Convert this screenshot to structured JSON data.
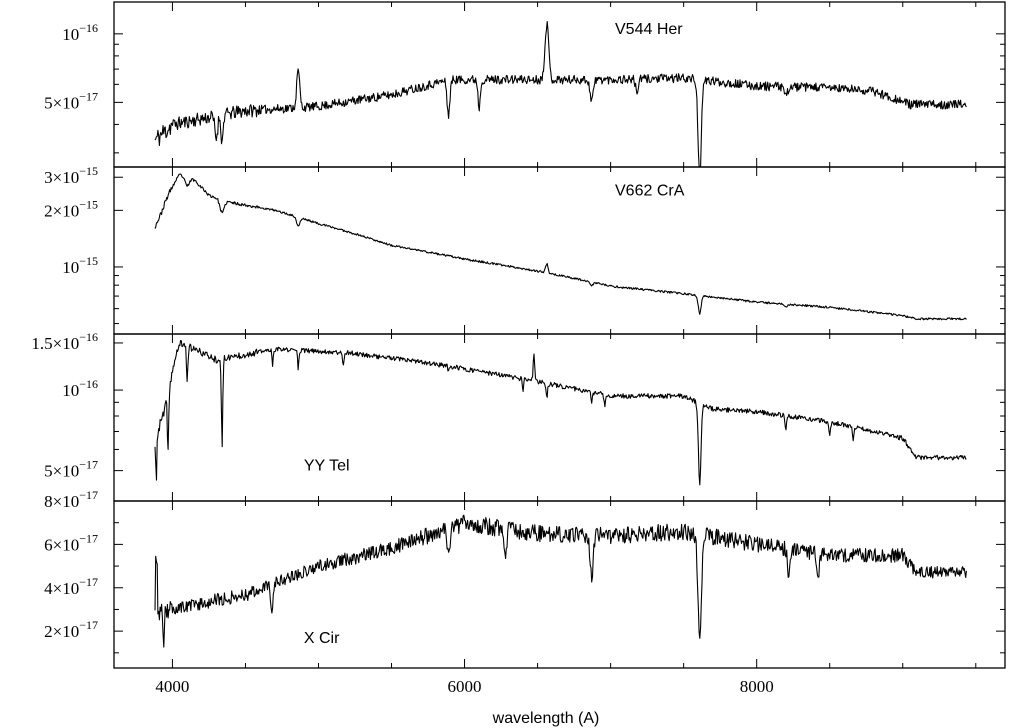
{
  "chart_data": {
    "type": "line",
    "xlabel": "wavelength (A)",
    "xlim": [
      3600,
      9700
    ],
    "x_ticks": [
      {
        "value": 4000,
        "label": "4000"
      },
      {
        "value": 6000,
        "label": "6000"
      },
      {
        "value": 8000,
        "label": "8000"
      }
    ],
    "x_minor_step": 500,
    "grid": false,
    "panels": [
      {
        "id": "v544-her",
        "star_label": "V544 Her",
        "star_label_anchor": [
          7030,
          1e-16,
          "upper-right"
        ],
        "y_scale": "log",
        "ylim": [
          2.6e-17,
          1.38e-16
        ],
        "y_ticks": [
          {
            "value": 1e-16,
            "mantissa": "",
            "exponent": "−16"
          },
          {
            "value": 5e-17,
            "mantissa": "5×",
            "exponent": "−17"
          }
        ],
        "y_minor": [
          3e-17,
          4e-17,
          6e-17,
          7e-17,
          8e-17,
          9e-17
        ],
        "seed": 11,
        "noise": 0.045,
        "continuum": [
          [
            3860,
            3.3e-17
          ],
          [
            4000,
            4e-17
          ],
          [
            4500,
            4.6e-17
          ],
          [
            5000,
            4.8e-17
          ],
          [
            5500,
            5.4e-17
          ],
          [
            5900,
            6.3e-17
          ],
          [
            6200,
            6.3e-17
          ],
          [
            6600,
            6.3e-17
          ],
          [
            7000,
            6.3e-17
          ],
          [
            7500,
            6.4e-17
          ],
          [
            8000,
            5.9e-17
          ],
          [
            8500,
            5.8e-17
          ],
          [
            8800,
            5.6e-17
          ],
          [
            9050,
            4.9e-17
          ]
        ],
        "features": [
          {
            "w": 4340,
            "d": -0.25,
            "s": 7
          },
          {
            "w": 4861,
            "d": 0.45,
            "s": 10
          },
          {
            "w": 4300,
            "d": -0.2,
            "s": 10
          },
          {
            "w": 5890,
            "d": -0.3,
            "s": 10
          },
          {
            "w": 6100,
            "d": -0.25,
            "s": 8
          },
          {
            "w": 6563,
            "d": 0.75,
            "s": 12
          },
          {
            "w": 6870,
            "d": -0.18,
            "s": 12
          },
          {
            "w": 7180,
            "d": -0.12,
            "s": 10
          },
          {
            "w": 7610,
            "d": -0.7,
            "s": 12
          },
          {
            "w": 8200,
            "d": -0.1,
            "s": 10
          }
        ]
      },
      {
        "id": "v662-cra",
        "star_label": "V662 CrA",
        "star_label_anchor": [
          7030,
          2.4e-15,
          "upper-right"
        ],
        "y_scale": "log",
        "ylim": [
          4.4e-16,
          3.4e-15
        ],
        "y_ticks": [
          {
            "value": 3e-15,
            "mantissa": "3×",
            "exponent": "−15"
          },
          {
            "value": 2e-15,
            "mantissa": "2×",
            "exponent": "−15"
          },
          {
            "value": 1e-15,
            "mantissa": "",
            "exponent": "−15"
          }
        ],
        "y_minor": [
          5e-16,
          6e-16,
          7e-16,
          8e-16,
          9e-16
        ],
        "seed": 23,
        "noise": 0.012,
        "continuum": [
          [
            3860,
            1.5e-15
          ],
          [
            3920,
            1.9e-15
          ],
          [
            3980,
            2.5e-15
          ],
          [
            4050,
            3.1e-15
          ],
          [
            4150,
            2.9e-15
          ],
          [
            4250,
            2.4e-15
          ],
          [
            4400,
            2.2e-15
          ],
          [
            4700,
            2e-15
          ],
          [
            5000,
            1.7e-15
          ],
          [
            5500,
            1.3e-15
          ],
          [
            6000,
            1.1e-15
          ],
          [
            6500,
            9.5e-16
          ],
          [
            7000,
            7.9e-16
          ],
          [
            7500,
            7.2e-16
          ],
          [
            8000,
            6.5e-16
          ],
          [
            8500,
            6.1e-16
          ],
          [
            9000,
            5.5e-16
          ],
          [
            9090,
            5.3e-16
          ]
        ],
        "features": [
          {
            "w": 4100,
            "d": -0.1,
            "s": 15
          },
          {
            "w": 4340,
            "d": -0.15,
            "s": 15
          },
          {
            "w": 4861,
            "d": -0.1,
            "s": 12
          },
          {
            "w": 6563,
            "d": 0.12,
            "s": 8
          },
          {
            "w": 6870,
            "d": -0.05,
            "s": 8
          },
          {
            "w": 7610,
            "d": -0.2,
            "s": 10
          },
          {
            "w": 8200,
            "d": -0.03,
            "s": 10
          }
        ]
      },
      {
        "id": "yy-tel",
        "star_label": "YY Tel",
        "star_label_anchor": [
          4900,
          5e-17,
          "lower-left"
        ],
        "y_scale": "log",
        "ylim": [
          3.85e-17,
          1.62e-16
        ],
        "y_ticks": [
          {
            "value": 1.5e-16,
            "mantissa": "1.5×",
            "exponent": "−16"
          },
          {
            "value": 1e-16,
            "mantissa": "",
            "exponent": "−16"
          },
          {
            "value": 5e-17,
            "mantissa": "5×",
            "exponent": "−17"
          }
        ],
        "y_minor": [
          6e-17,
          7e-17,
          8e-17,
          9e-17
        ],
        "seed": 37,
        "noise": 0.02,
        "continuum": [
          [
            3860,
            5.7e-17
          ],
          [
            3950,
            8.5e-17
          ],
          [
            4050,
            1.5e-16
          ],
          [
            4300,
            1.3e-16
          ],
          [
            4700,
            1.42e-16
          ],
          [
            5200,
            1.38e-16
          ],
          [
            5800,
            1.25e-16
          ],
          [
            6200,
            1.15e-16
          ],
          [
            6600,
            1.05e-16
          ],
          [
            7000,
            9.5e-17
          ],
          [
            7500,
            9.5e-17
          ],
          [
            7700,
            8.5e-17
          ],
          [
            8000,
            8.3e-17
          ],
          [
            8500,
            7.6e-17
          ],
          [
            9000,
            6.6e-17
          ],
          [
            9090,
            5.6e-17
          ]
        ],
        "features": [
          {
            "w": 3889,
            "d": -0.3,
            "s": 4
          },
          {
            "w": 3970,
            "d": -0.4,
            "s": 5
          },
          {
            "w": 4101,
            "d": -0.25,
            "s": 5
          },
          {
            "w": 4340,
            "d": -0.55,
            "s": 5
          },
          {
            "w": 4686,
            "d": -0.15,
            "s": 4
          },
          {
            "w": 4861,
            "d": -0.15,
            "s": 4
          },
          {
            "w": 5170,
            "d": -0.12,
            "s": 4
          },
          {
            "w": 5890,
            "d": -0.05,
            "s": 4
          },
          {
            "w": 6400,
            "d": -0.1,
            "s": 4
          },
          {
            "w": 6475,
            "d": 0.25,
            "s": 5
          },
          {
            "w": 6563,
            "d": -0.12,
            "s": 5
          },
          {
            "w": 6870,
            "d": -0.1,
            "s": 5
          },
          {
            "w": 6960,
            "d": -0.08,
            "s": 5
          },
          {
            "w": 7610,
            "d": -0.5,
            "s": 10
          },
          {
            "w": 8200,
            "d": -0.1,
            "s": 6
          },
          {
            "w": 8500,
            "d": -0.1,
            "s": 5
          },
          {
            "w": 8660,
            "d": -0.1,
            "s": 5
          }
        ]
      },
      {
        "id": "x-cir",
        "star_label": "X Cir",
        "star_label_anchor": [
          4900,
          1.45e-17,
          "lower-left"
        ],
        "y_scale": "linear",
        "ylim": [
          3e-18,
          8e-17
        ],
        "y_ticks": [
          {
            "value": 8e-17,
            "mantissa": "8×",
            "exponent": "−17"
          },
          {
            "value": 6e-17,
            "mantissa": "6×",
            "exponent": "−17"
          },
          {
            "value": 4e-17,
            "mantissa": "4×",
            "exponent": "−17"
          },
          {
            "value": 2e-17,
            "mantissa": "2×",
            "exponent": "−17"
          }
        ],
        "y_minor": [
          1e-17,
          3e-17,
          5e-17,
          7e-17
        ],
        "seed": 53,
        "noise": 0.06,
        "continuum": [
          [
            3860,
            2.8e-17
          ],
          [
            4000,
            3e-17
          ],
          [
            4500,
            3.7e-17
          ],
          [
            5000,
            5e-17
          ],
          [
            5500,
            5.8e-17
          ],
          [
            6000,
            7e-17
          ],
          [
            6500,
            6.5e-17
          ],
          [
            7000,
            6.4e-17
          ],
          [
            7500,
            6.6e-17
          ],
          [
            8000,
            6e-17
          ],
          [
            8500,
            5.5e-17
          ],
          [
            9000,
            5.5e-17
          ],
          [
            9090,
            4.7e-17
          ]
        ],
        "features": [
          {
            "w": 3890,
            "d": 1.1,
            "s": 5
          },
          {
            "w": 3940,
            "d": -0.6,
            "s": 5
          },
          {
            "w": 4680,
            "d": -0.35,
            "s": 7
          },
          {
            "w": 5890,
            "d": -0.15,
            "s": 10
          },
          {
            "w": 6280,
            "d": -0.2,
            "s": 8
          },
          {
            "w": 6870,
            "d": -0.3,
            "s": 10
          },
          {
            "w": 7610,
            "d": -0.75,
            "s": 12
          },
          {
            "w": 8220,
            "d": -0.25,
            "s": 7
          },
          {
            "w": 8420,
            "d": -0.2,
            "s": 7
          }
        ]
      }
    ]
  }
}
